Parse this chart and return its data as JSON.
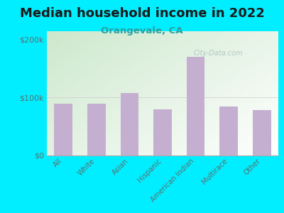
{
  "title": "Median household income in 2022",
  "subtitle": "Orangevale, CA",
  "categories": [
    "All",
    "White",
    "Asian",
    "Hispanic",
    "American Indian",
    "Multirace",
    "Other"
  ],
  "values": [
    90000,
    89000,
    108000,
    80000,
    170000,
    84000,
    79000
  ],
  "bar_color": "#c5afd0",
  "background_outer": "#00eeff",
  "ytick_labels": [
    "$0",
    "$100k",
    "$200k"
  ],
  "ytick_values": [
    0,
    100000,
    200000
  ],
  "ylim": [
    0,
    215000
  ],
  "title_fontsize": 13,
  "subtitle_fontsize": 9.5,
  "subtitle_color": "#2aa0a0",
  "tick_color": "#5a7070",
  "watermark": "City-Data.com",
  "watermark_color": "#a0b8b8"
}
